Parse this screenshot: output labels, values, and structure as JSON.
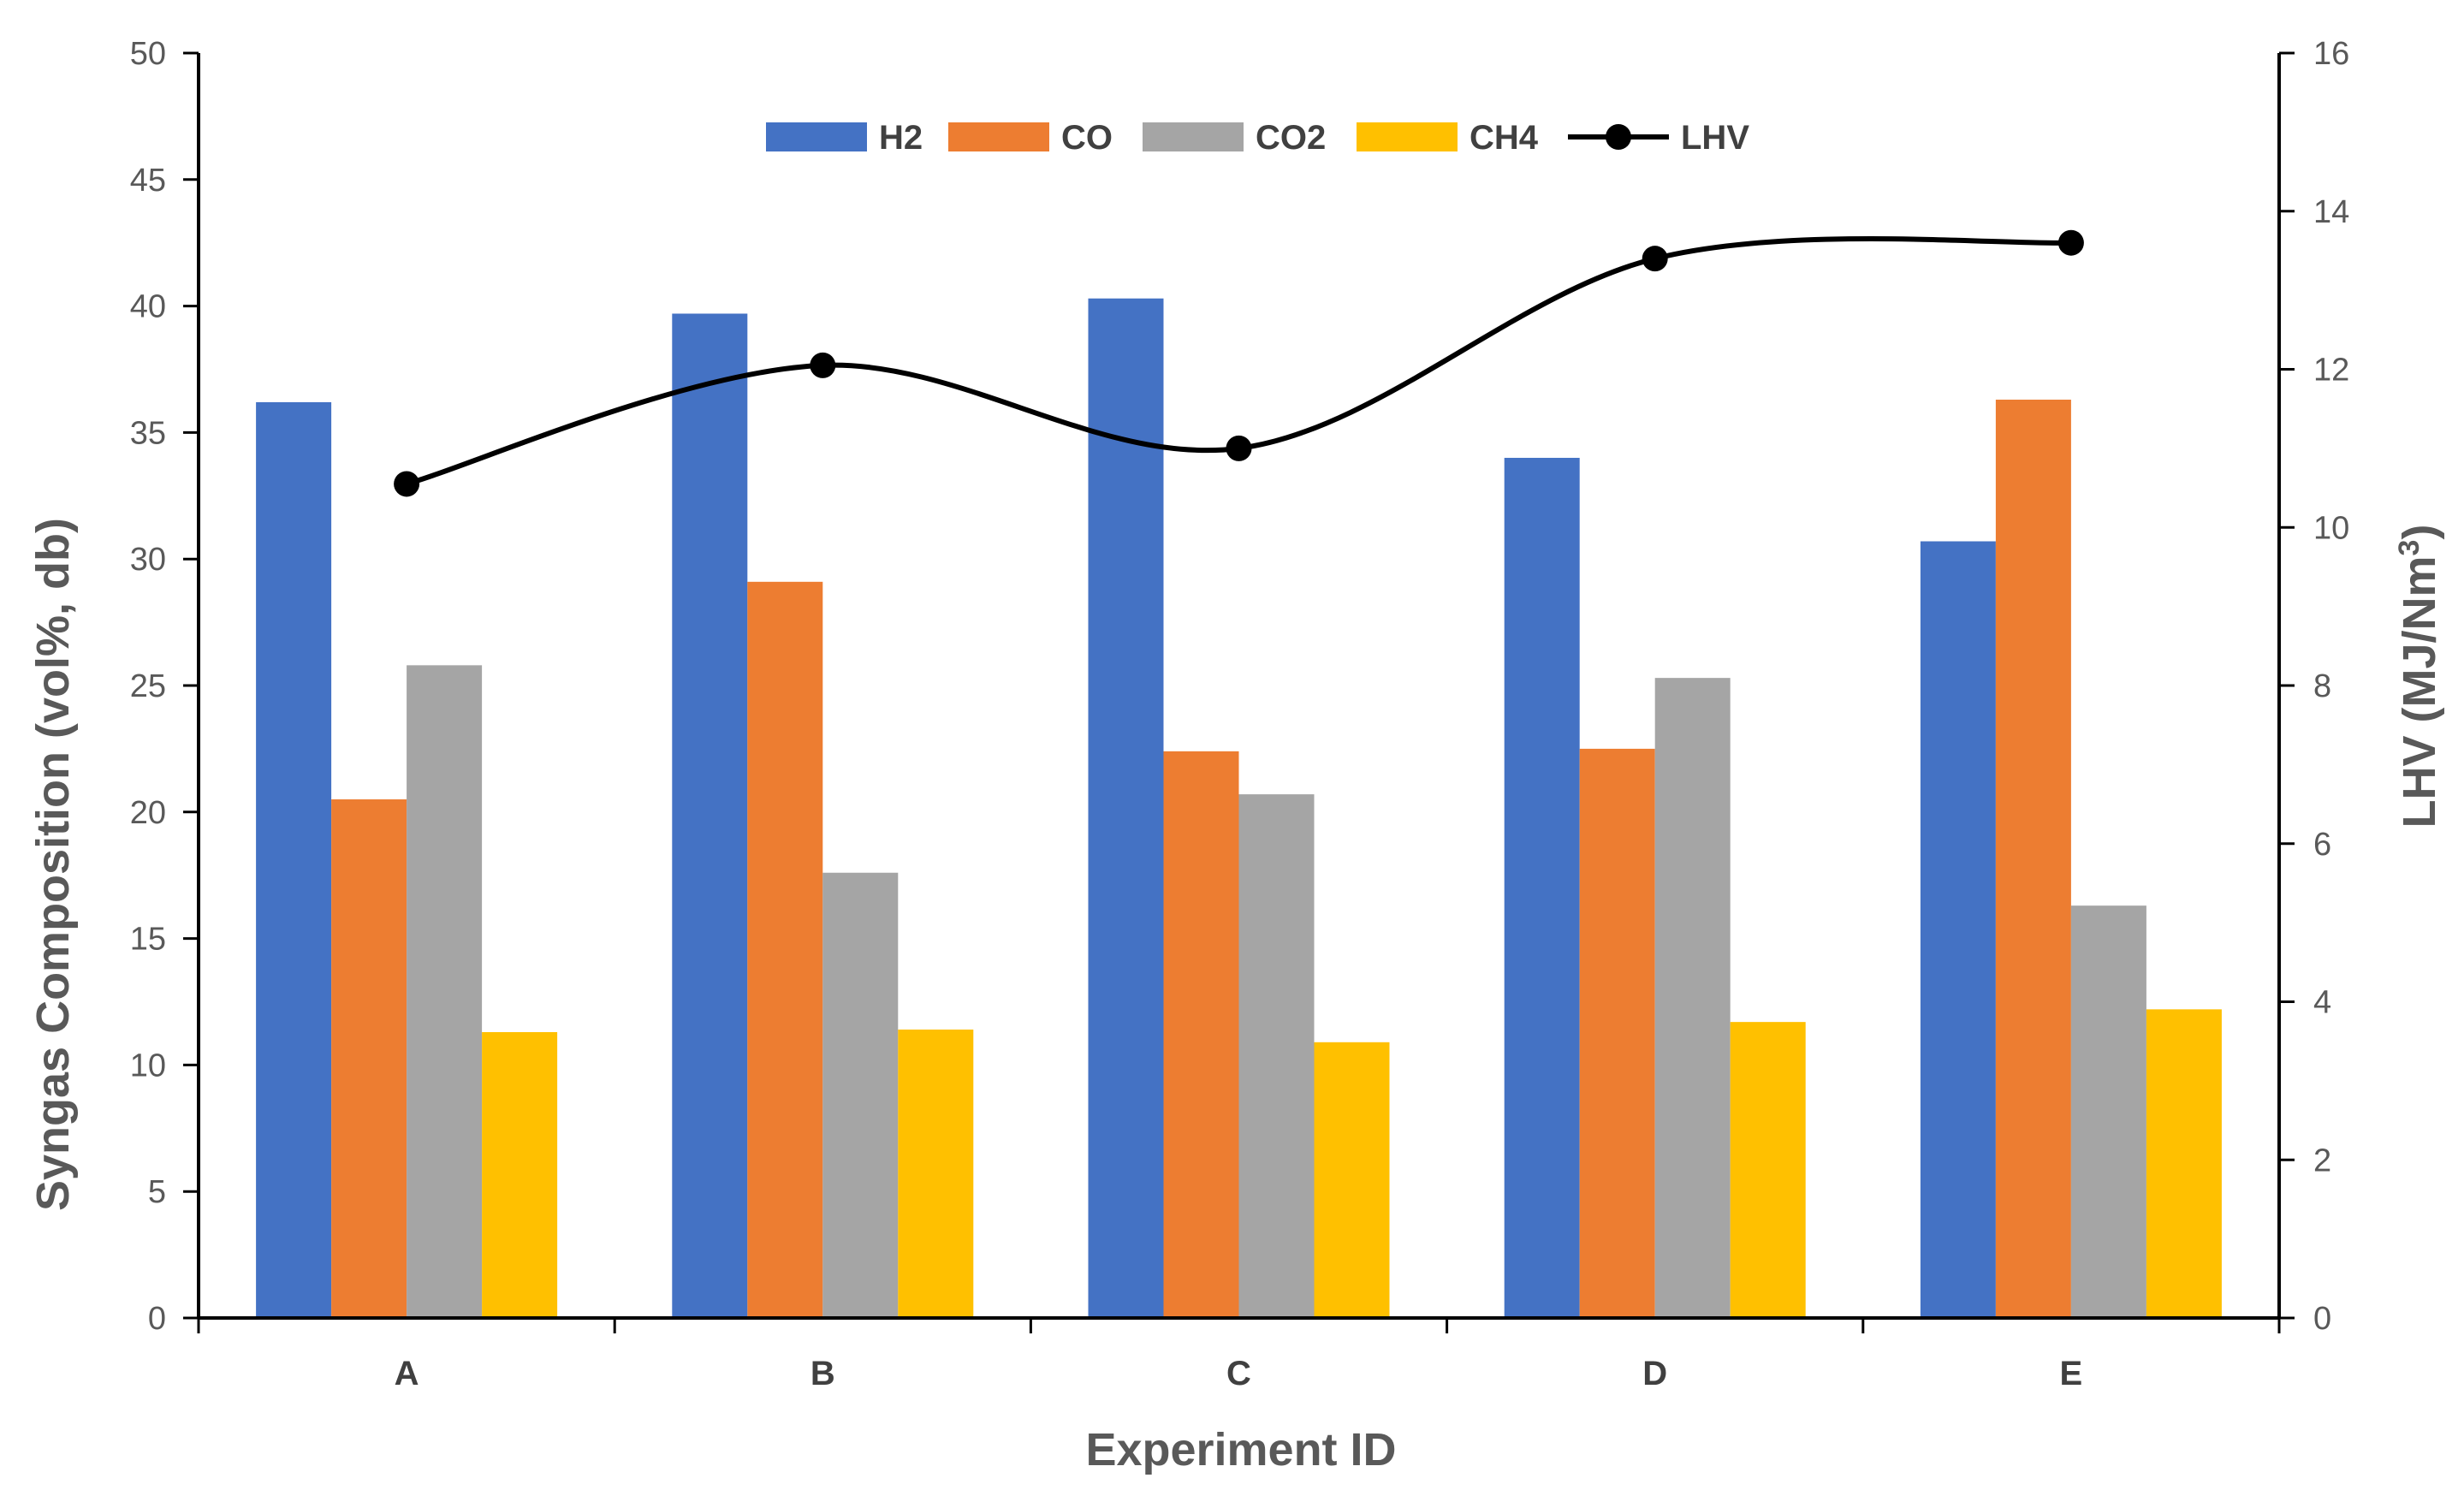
{
  "chart_data": {
    "type": "bar",
    "categories": [
      "A",
      "B",
      "C",
      "D",
      "E"
    ],
    "series": [
      {
        "name": "H2",
        "axis": "left",
        "kind": "bar",
        "color": "#4472C4",
        "values": [
          36.2,
          39.7,
          40.3,
          34.0,
          30.7
        ]
      },
      {
        "name": "CO",
        "axis": "left",
        "kind": "bar",
        "color": "#ED7D31",
        "values": [
          20.5,
          29.1,
          22.4,
          22.5,
          36.3
        ]
      },
      {
        "name": "CO2",
        "axis": "left",
        "kind": "bar",
        "color": "#A5A5A5",
        "values": [
          25.8,
          17.6,
          20.7,
          25.3,
          16.3
        ]
      },
      {
        "name": "CH4",
        "axis": "left",
        "kind": "bar",
        "color": "#FFC000",
        "values": [
          11.3,
          11.4,
          10.9,
          11.7,
          12.2
        ]
      },
      {
        "name": "LHV",
        "axis": "right",
        "kind": "line",
        "color": "#000000",
        "values": [
          10.55,
          12.05,
          11.0,
          13.4,
          13.6
        ]
      }
    ],
    "xlabel": "Experiment ID",
    "ylabel": "Syngas Composition (vol%, db)",
    "y2label": "LHV (MJ/Nm",
    "y2label_sup": "3",
    "y2label_end": ")",
    "ylim": [
      0,
      50
    ],
    "yticks": [
      "0",
      "5",
      "10",
      "15",
      "20",
      "25",
      "30",
      "35",
      "40",
      "45",
      "50"
    ],
    "y2lim": [
      0,
      16
    ],
    "y2ticks": [
      "0",
      "2",
      "4",
      "6",
      "8",
      "10",
      "12",
      "14",
      "16"
    ],
    "legend_position": "top-center",
    "grid": false
  }
}
